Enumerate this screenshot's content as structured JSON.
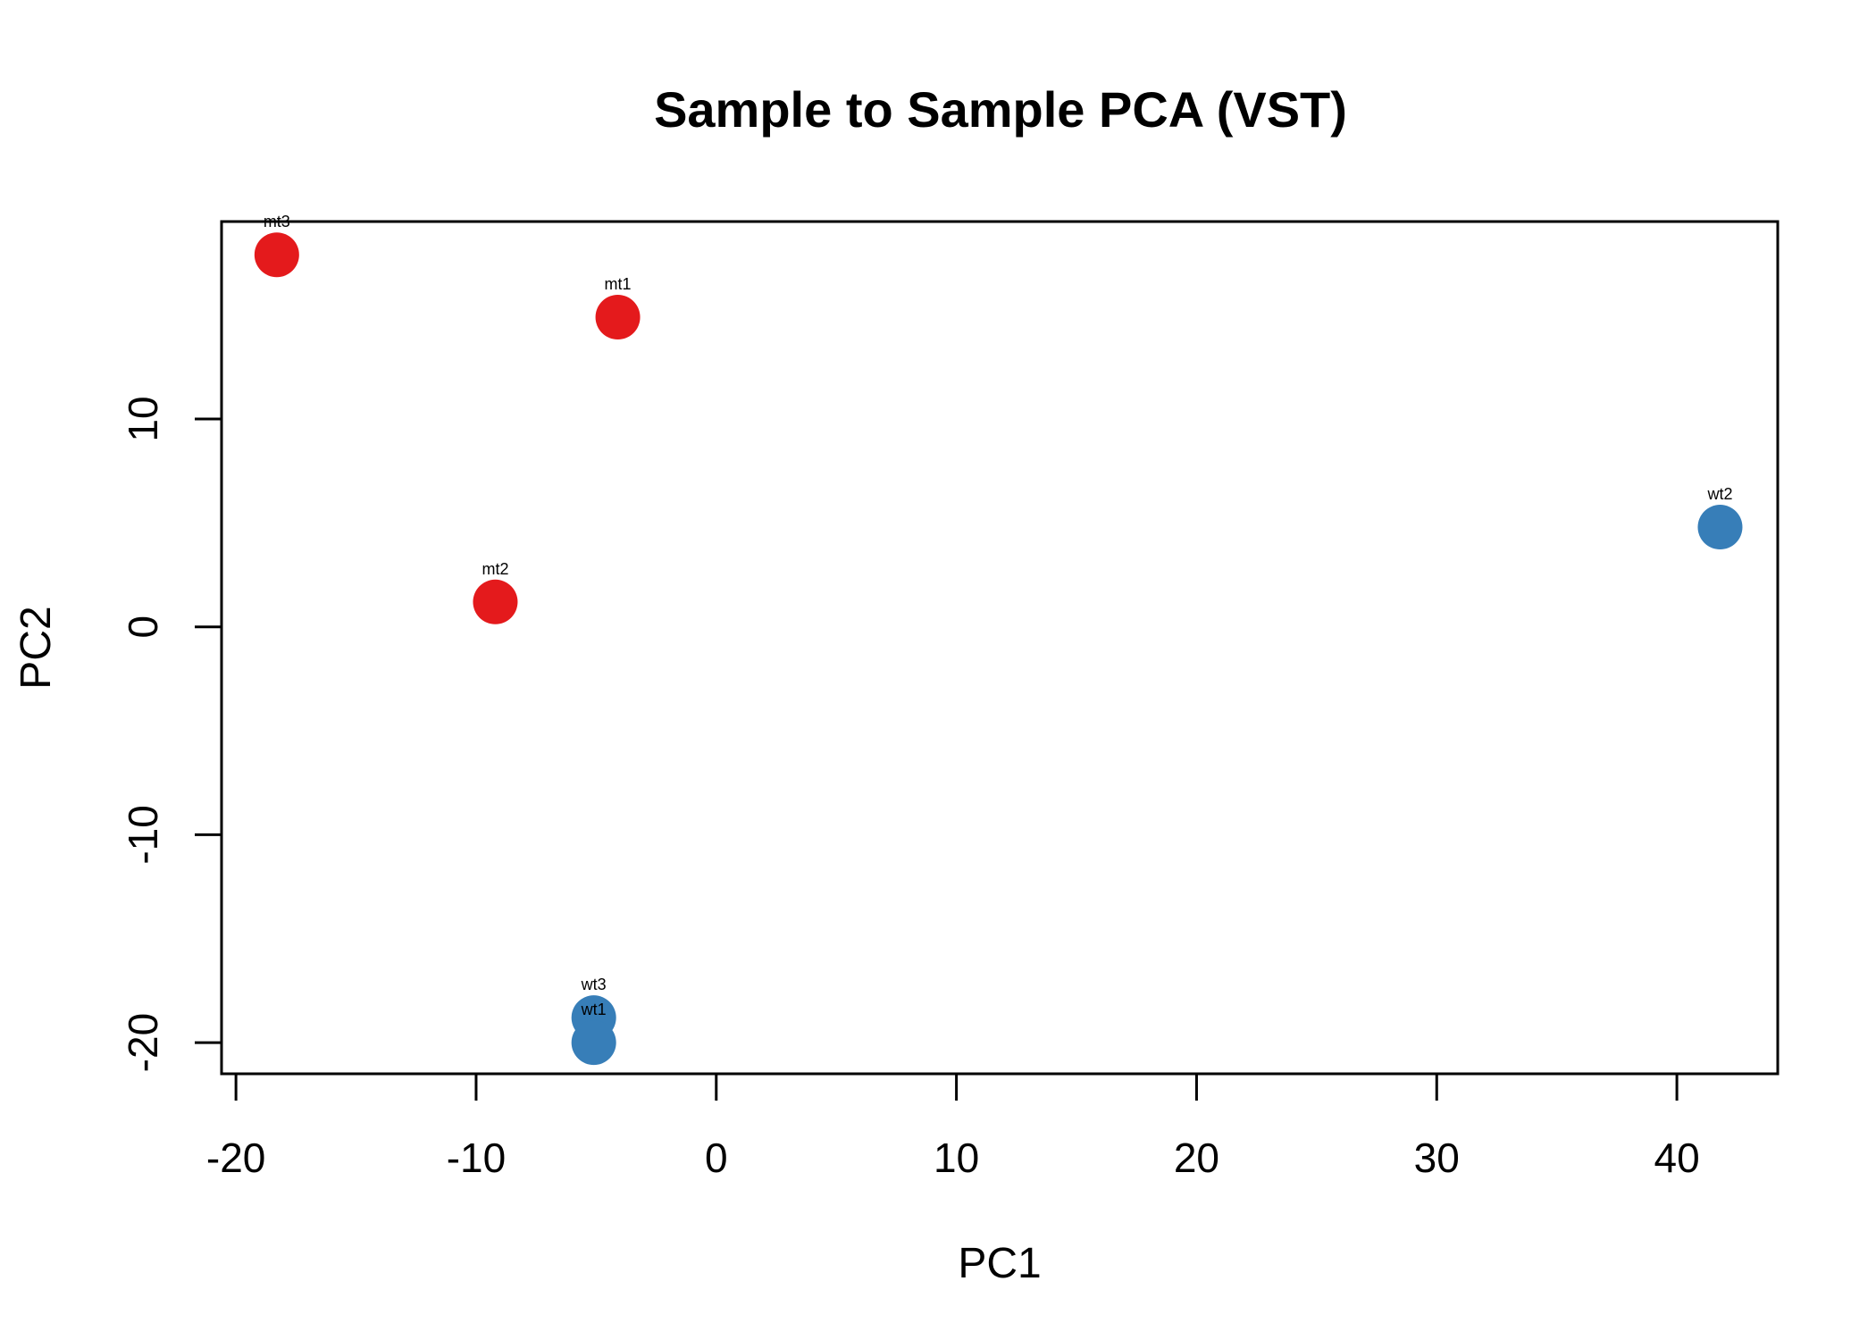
{
  "chart_data": {
    "type": "scatter",
    "title": "Sample to Sample PCA (VST)",
    "xlabel": "PC1",
    "ylabel": "PC2",
    "xlim": [
      -20.6,
      44.2
    ],
    "ylim": [
      -21.5,
      19.5
    ],
    "xticks": [
      -20,
      -10,
      0,
      10,
      20,
      30,
      40
    ],
    "yticks": [
      -20,
      -10,
      0,
      10
    ],
    "grid": false,
    "points": [
      {
        "label": "mt3",
        "x": -18.3,
        "y": 17.9,
        "color": "#E41A1C"
      },
      {
        "label": "mt1",
        "x": -4.1,
        "y": 14.9,
        "color": "#E41A1C"
      },
      {
        "label": "mt2",
        "x": -9.2,
        "y": 1.2,
        "color": "#E41A1C"
      },
      {
        "label": "wt2",
        "x": 41.8,
        "y": 4.8,
        "color": "#377EB8"
      },
      {
        "label": "wt3",
        "x": -5.1,
        "y": -18.8,
        "color": "#377EB8"
      },
      {
        "label": "wt1",
        "x": -5.1,
        "y": -20.0,
        "color": "#377EB8"
      }
    ]
  }
}
